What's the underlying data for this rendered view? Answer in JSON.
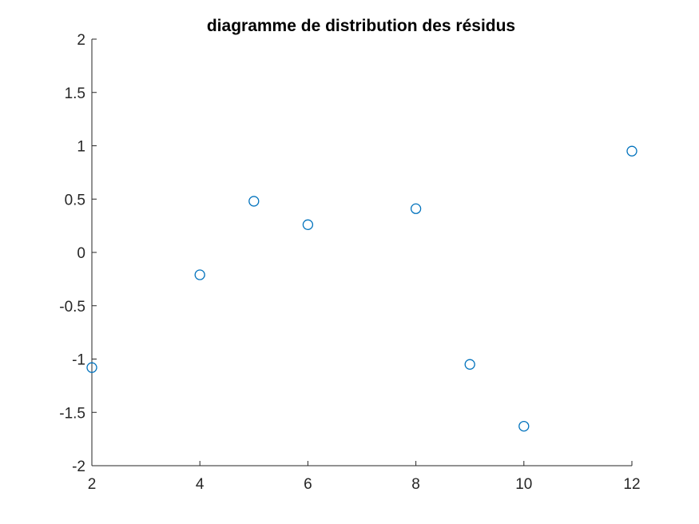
{
  "chart_data": {
    "type": "scatter",
    "title": "diagramme de distribution des résidus",
    "xlabel": "",
    "ylabel": "",
    "xlim": [
      2,
      12
    ],
    "ylim": [
      -2,
      2
    ],
    "x_ticks": [
      2,
      4,
      6,
      8,
      10,
      12
    ],
    "x_tick_labels": [
      "2",
      "4",
      "6",
      "8",
      "10",
      "12"
    ],
    "y_ticks": [
      2,
      1.5,
      1,
      0.5,
      0,
      -0.5,
      -1,
      -1.5,
      -2
    ],
    "y_tick_labels": [
      "2",
      "1.5",
      "1",
      "0.5",
      "0",
      "-0.5",
      "-1",
      "-1.5",
      "-2"
    ],
    "grid": false,
    "marker": "circle-open",
    "marker_color": "#0072BD",
    "series": [
      {
        "x": [
          2,
          4,
          5,
          6,
          8,
          9,
          10,
          12
        ],
        "y": [
          -1.08,
          -0.21,
          0.48,
          0.26,
          0.41,
          -1.05,
          -1.63,
          0.95
        ]
      }
    ]
  }
}
